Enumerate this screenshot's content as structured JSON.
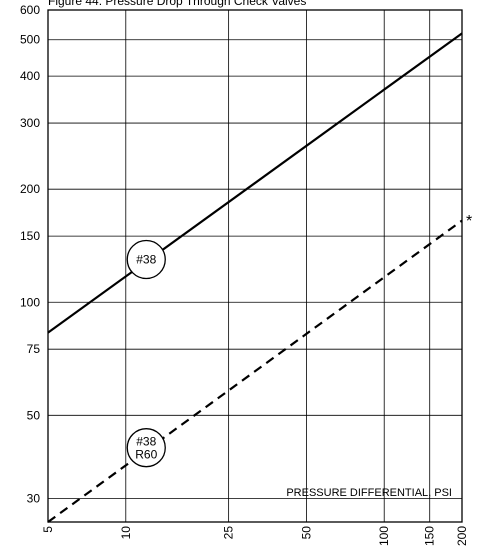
{
  "chart_data": {
    "type": "line",
    "title": "Figure 44. Pressure Drop Through Check Valves",
    "xlabel": "PRESSURE DIFFERENTIAL, PSI",
    "ylabel": "",
    "x_scale": "log",
    "y_scale": "log",
    "xlim": [
      5,
      200
    ],
    "ylim": [
      26,
      600
    ],
    "x_ticks": [
      5,
      10,
      25,
      50,
      100,
      150,
      200
    ],
    "y_ticks": [
      30,
      50,
      75,
      100,
      150,
      200,
      300,
      400,
      500,
      600
    ],
    "grid": true,
    "series": [
      {
        "name": "#38",
        "style": "solid",
        "x": [
          5,
          200
        ],
        "y": [
          83,
          520
        ]
      },
      {
        "name": "#38 R60",
        "style": "dashed",
        "x": [
          5,
          200
        ],
        "y": [
          26,
          165
        ]
      }
    ],
    "labels": [
      {
        "text": "#38",
        "x": 12,
        "y": 130
      },
      {
        "text": "#38",
        "line2": "R60",
        "x": 12,
        "y": 41
      }
    ],
    "marker": "*"
  }
}
